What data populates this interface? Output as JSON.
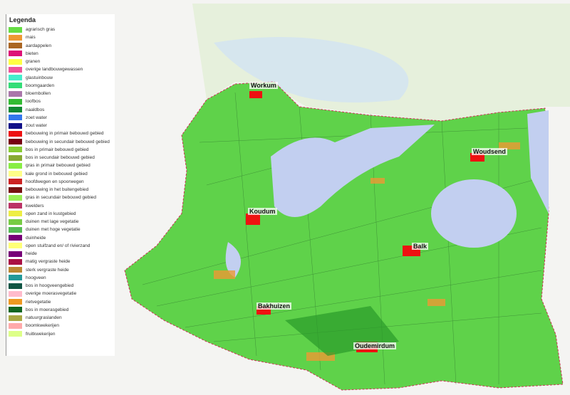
{
  "legend": {
    "title": "Legenda",
    "items": [
      {
        "label": "agrarisch gras",
        "color": "#66dd44"
      },
      {
        "label": "mais",
        "color": "#ee9933"
      },
      {
        "label": "aardappelen",
        "color": "#aa6622"
      },
      {
        "label": "bieten",
        "color": "#dd1177"
      },
      {
        "label": "granen",
        "color": "#ffff44"
      },
      {
        "label": "overige landbouwgewassen",
        "color": "#ee5599"
      },
      {
        "label": "glastuinbouw",
        "color": "#44eecc"
      },
      {
        "label": "boomgaarden",
        "color": "#33dd77"
      },
      {
        "label": "bloembollen",
        "color": "#aa77aa"
      },
      {
        "label": "loofbos",
        "color": "#33bb33"
      },
      {
        "label": "naaldbos",
        "color": "#118833"
      },
      {
        "label": "zoet water",
        "color": "#3377ee"
      },
      {
        "label": "zout water",
        "color": "#111188"
      },
      {
        "label": "bebouwing in primair bebouwd gebied",
        "color": "#ee1111"
      },
      {
        "label": "bebouwing in secundair bebouwd gebied",
        "color": "#770011"
      },
      {
        "label": "bos in primair bebouwd gebied",
        "color": "#88cc33"
      },
      {
        "label": "bos in secundair bebouwd gebied",
        "color": "#88aa33"
      },
      {
        "label": "gras in primair bebouwd gebied",
        "color": "#88ee44"
      },
      {
        "label": "kale grond in bebouwd gebied",
        "color": "#ffff88"
      },
      {
        "label": "hoofdwegen en spoorwegen",
        "color": "#cc2222"
      },
      {
        "label": "bebouwing in het buitengebied",
        "color": "#771111"
      },
      {
        "label": "gras in secundair bebouwd gebied",
        "color": "#99ee55"
      },
      {
        "label": "kwelders",
        "color": "#bb3366"
      },
      {
        "label": "open zand in kustgebied",
        "color": "#eeee44"
      },
      {
        "label": "duinen met lage vegetatie",
        "color": "#77cc44"
      },
      {
        "label": "duinen met hoge vegetatie",
        "color": "#55bb55"
      },
      {
        "label": "duinheide",
        "color": "#770077"
      },
      {
        "label": "open stuifzand en/ of rivierzand",
        "color": "#ffff77"
      },
      {
        "label": "heide",
        "color": "#770077"
      },
      {
        "label": "matig vergraste heide",
        "color": "#aa1144"
      },
      {
        "label": "sterk vergraste heide",
        "color": "#bb8833"
      },
      {
        "label": "hoogveen",
        "color": "#229999"
      },
      {
        "label": "bos in hoogveengebied",
        "color": "#115544"
      },
      {
        "label": "overige moerasvegetatie",
        "color": "#ffbbcc"
      },
      {
        "label": "rietvegetatie",
        "color": "#ee9922"
      },
      {
        "label": "bos in moerasgebied",
        "color": "#116622"
      },
      {
        "label": "natuurgraslanden",
        "color": "#aaaa44"
      },
      {
        "label": "boomkwekerijen",
        "color": "#ffaaaa"
      },
      {
        "label": "fruitkwekerijen",
        "color": "#ddff88"
      }
    ]
  },
  "places": [
    "Workum",
    "Koudum",
    "Woudsend",
    "Balk",
    "Bakhuizen",
    "Oudemirdum"
  ]
}
